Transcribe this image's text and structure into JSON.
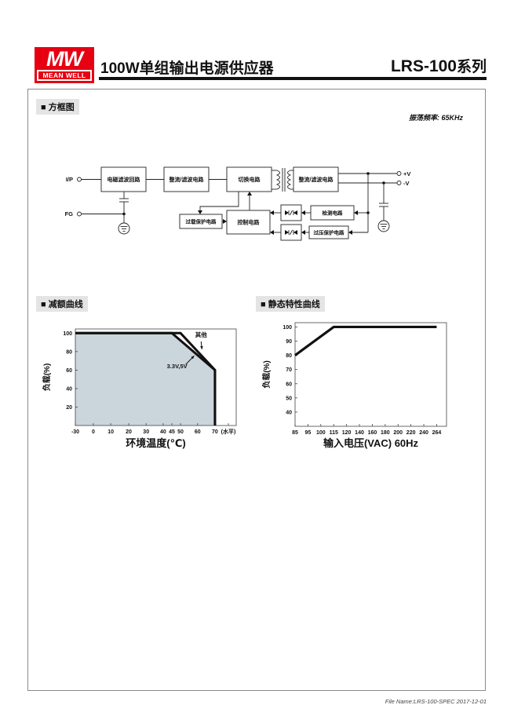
{
  "header": {
    "logo_mw": "MW",
    "logo_brand": "MEAN WELL",
    "title": "100W单组输出电源供应器",
    "series_model": "LRS-100",
    "series_suffix": "系列"
  },
  "sections": {
    "block_diagram": "■ 方框图",
    "derating": "■ 减额曲线",
    "static": "■ 静态特性曲线"
  },
  "block_diagram": {
    "osc_freq": "振荡频率: 65KHz",
    "terminals": {
      "input": "I/P",
      "fg": "FG",
      "vplus": "+V",
      "vminus": "-V"
    },
    "blocks": {
      "emi_filter": "电磁滤波回路",
      "rectifier_filter_in": "整流/滤波电路",
      "switching": "切换电路",
      "rectifier_filter_out": "整流/滤波电路",
      "overload_protection": "过载保护电路",
      "control": "控制电路",
      "detection": "检测电路",
      "overvoltage_protection": "过压保护电路"
    }
  },
  "chart_data": [
    {
      "type": "line",
      "title": "减额曲线",
      "xlabel": "环境温度(℃)",
      "ylabel": "负载(%)",
      "x_ticks": [
        "-30",
        "0",
        "10",
        "20",
        "30",
        "40",
        "45",
        "50",
        "60",
        "70",
        "(水平)"
      ],
      "x_tick_pos": [
        0,
        0.112,
        0.22,
        0.332,
        0.44,
        0.546,
        0.6,
        0.654,
        0.76,
        0.868,
        0.951
      ],
      "y_ticks": [
        20,
        40,
        60,
        80,
        100
      ],
      "ylim": [
        0,
        104.5
      ],
      "grid": false,
      "series": [
        {
          "name": "其他",
          "points": [
            [
              -30,
              100
            ],
            [
              50,
              100
            ],
            [
              70,
              60
            ],
            [
              70,
              0
            ]
          ]
        },
        {
          "name": "3.3V,5V",
          "points": [
            [
              -30,
              100
            ],
            [
              45,
              100
            ],
            [
              70,
              60
            ],
            [
              70,
              0
            ]
          ]
        }
      ],
      "fill": {
        "color": "#cbd5dc",
        "points": [
          [
            -30,
            0
          ],
          [
            -30,
            100
          ],
          [
            45,
            100
          ],
          [
            70,
            60
          ],
          [
            70,
            0
          ]
        ]
      },
      "annotations": [
        {
          "text": "其他",
          "text_at": [
            62,
            96
          ],
          "arrow_from": [
            62,
            91
          ],
          "arrow_to": [
            62.5,
            82.5
          ]
        },
        {
          "text": "3.3V,5V",
          "text_at": [
            48,
            62
          ],
          "arrow_from": [
            53,
            66
          ],
          "arrow_to": [
            58,
            75.5
          ]
        }
      ]
    },
    {
      "type": "line",
      "title": "静态特性曲线",
      "xlabel": "输入电压(VAC) 60Hz",
      "ylabel": "负载(%)",
      "x_ticks": [
        "85",
        "95",
        "100",
        "115",
        "120",
        "140",
        "160",
        "180",
        "200",
        "220",
        "240",
        "264"
      ],
      "x_tick_pos": [
        0,
        0.085,
        0.17,
        0.255,
        0.34,
        0.425,
        0.51,
        0.595,
        0.68,
        0.765,
        0.85,
        0.935
      ],
      "y_ticks": [
        40,
        50,
        60,
        70,
        80,
        90,
        100
      ],
      "ylim": [
        30,
        103
      ],
      "grid": false,
      "series": [
        {
          "name": "负载",
          "points": [
            [
              85,
              80
            ],
            [
              115,
              100
            ],
            [
              264,
              100
            ]
          ]
        }
      ],
      "annotations": []
    }
  ],
  "footer": {
    "file_info": "File Name:LRS-100-SPEC  2017-12-01"
  }
}
